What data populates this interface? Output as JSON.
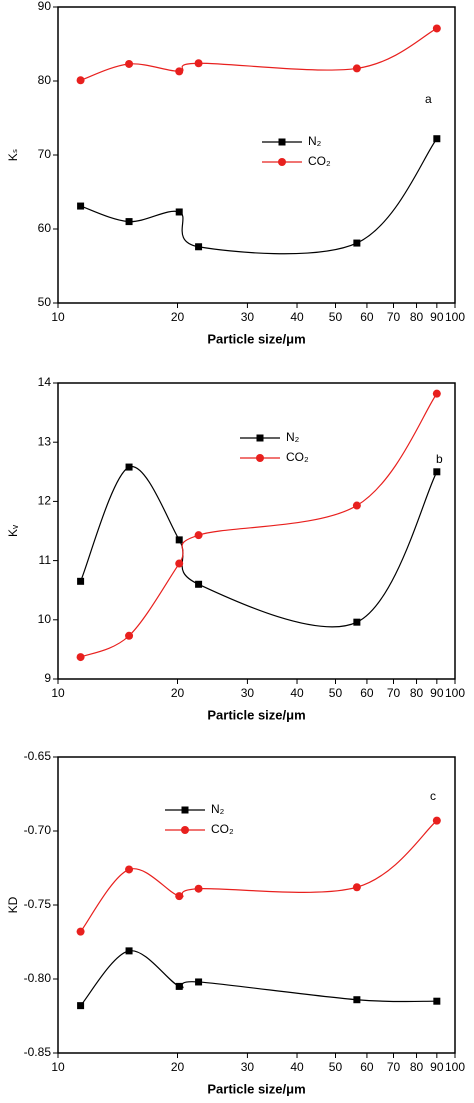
{
  "chart_data": [
    {
      "type": "line",
      "annotation": "a",
      "xlabel": "Particle size/μm",
      "ylabel": "Kₛ",
      "xscale": "log",
      "xlim": [
        10,
        100
      ],
      "xticks": [
        10,
        20,
        30,
        40,
        50,
        60,
        70,
        80,
        90,
        100
      ],
      "ylim": [
        50,
        90
      ],
      "yticks": [
        50,
        60,
        70,
        80,
        90
      ],
      "series": [
        {
          "name": "N₂",
          "color": "#000000",
          "marker": "square",
          "x": [
            11.4,
            15.1,
            20.2,
            22.6,
            56.6,
            90
          ],
          "values": [
            63.1,
            61.0,
            62.3,
            57.6,
            58.1,
            72.2
          ]
        },
        {
          "name": "CO₂",
          "color": "#e8201e",
          "marker": "circle",
          "x": [
            11.4,
            15.1,
            20.2,
            22.6,
            56.6,
            90
          ],
          "values": [
            80.1,
            82.3,
            81.3,
            82.4,
            81.7,
            87.1
          ]
        }
      ]
    },
    {
      "type": "line",
      "annotation": "b",
      "xlabel": "Particle size/μm",
      "ylabel": "Kᵥ",
      "xscale": "log",
      "xlim": [
        10,
        100
      ],
      "xticks": [
        10,
        20,
        30,
        40,
        50,
        60,
        70,
        80,
        90,
        100
      ],
      "ylim": [
        9,
        14
      ],
      "yticks": [
        9,
        10,
        11,
        12,
        13,
        14
      ],
      "series": [
        {
          "name": "N₂",
          "color": "#000000",
          "marker": "square",
          "x": [
            11.4,
            15.1,
            20.2,
            22.6,
            56.6,
            90
          ],
          "values": [
            10.65,
            12.58,
            11.35,
            10.6,
            9.96,
            12.5
          ]
        },
        {
          "name": "CO₂",
          "color": "#e8201e",
          "marker": "circle",
          "x": [
            11.4,
            15.1,
            20.2,
            22.6,
            56.6,
            90
          ],
          "values": [
            9.37,
            9.73,
            10.95,
            11.43,
            11.93,
            13.82
          ]
        }
      ]
    },
    {
      "type": "line",
      "annotation": "c",
      "xlabel": "Particle size/μm",
      "ylabel": "KD",
      "xscale": "log",
      "xlim": [
        10,
        100
      ],
      "xticks": [
        10,
        20,
        30,
        40,
        50,
        60,
        70,
        80,
        90,
        100
      ],
      "ylim": [
        -0.85,
        -0.65
      ],
      "yticks": [
        -0.85,
        {
          "value": -0.8,
          "label": "-0.80"
        },
        -0.75,
        {
          "value": -0.7,
          "label": "-0.70"
        },
        -0.65
      ],
      "series": [
        {
          "name": "N₂",
          "color": "#000000",
          "marker": "square",
          "x": [
            11.4,
            15.1,
            20.2,
            22.6,
            56.6,
            90
          ],
          "values": [
            -0.818,
            -0.781,
            -0.805,
            -0.802,
            -0.814,
            -0.815
          ]
        },
        {
          "name": "CO₂",
          "color": "#e8201e",
          "marker": "circle",
          "x": [
            11.4,
            15.1,
            20.2,
            22.6,
            56.6,
            90
          ],
          "values": [
            -0.768,
            -0.726,
            -0.744,
            -0.739,
            -0.738,
            -0.693
          ]
        }
      ]
    }
  ]
}
